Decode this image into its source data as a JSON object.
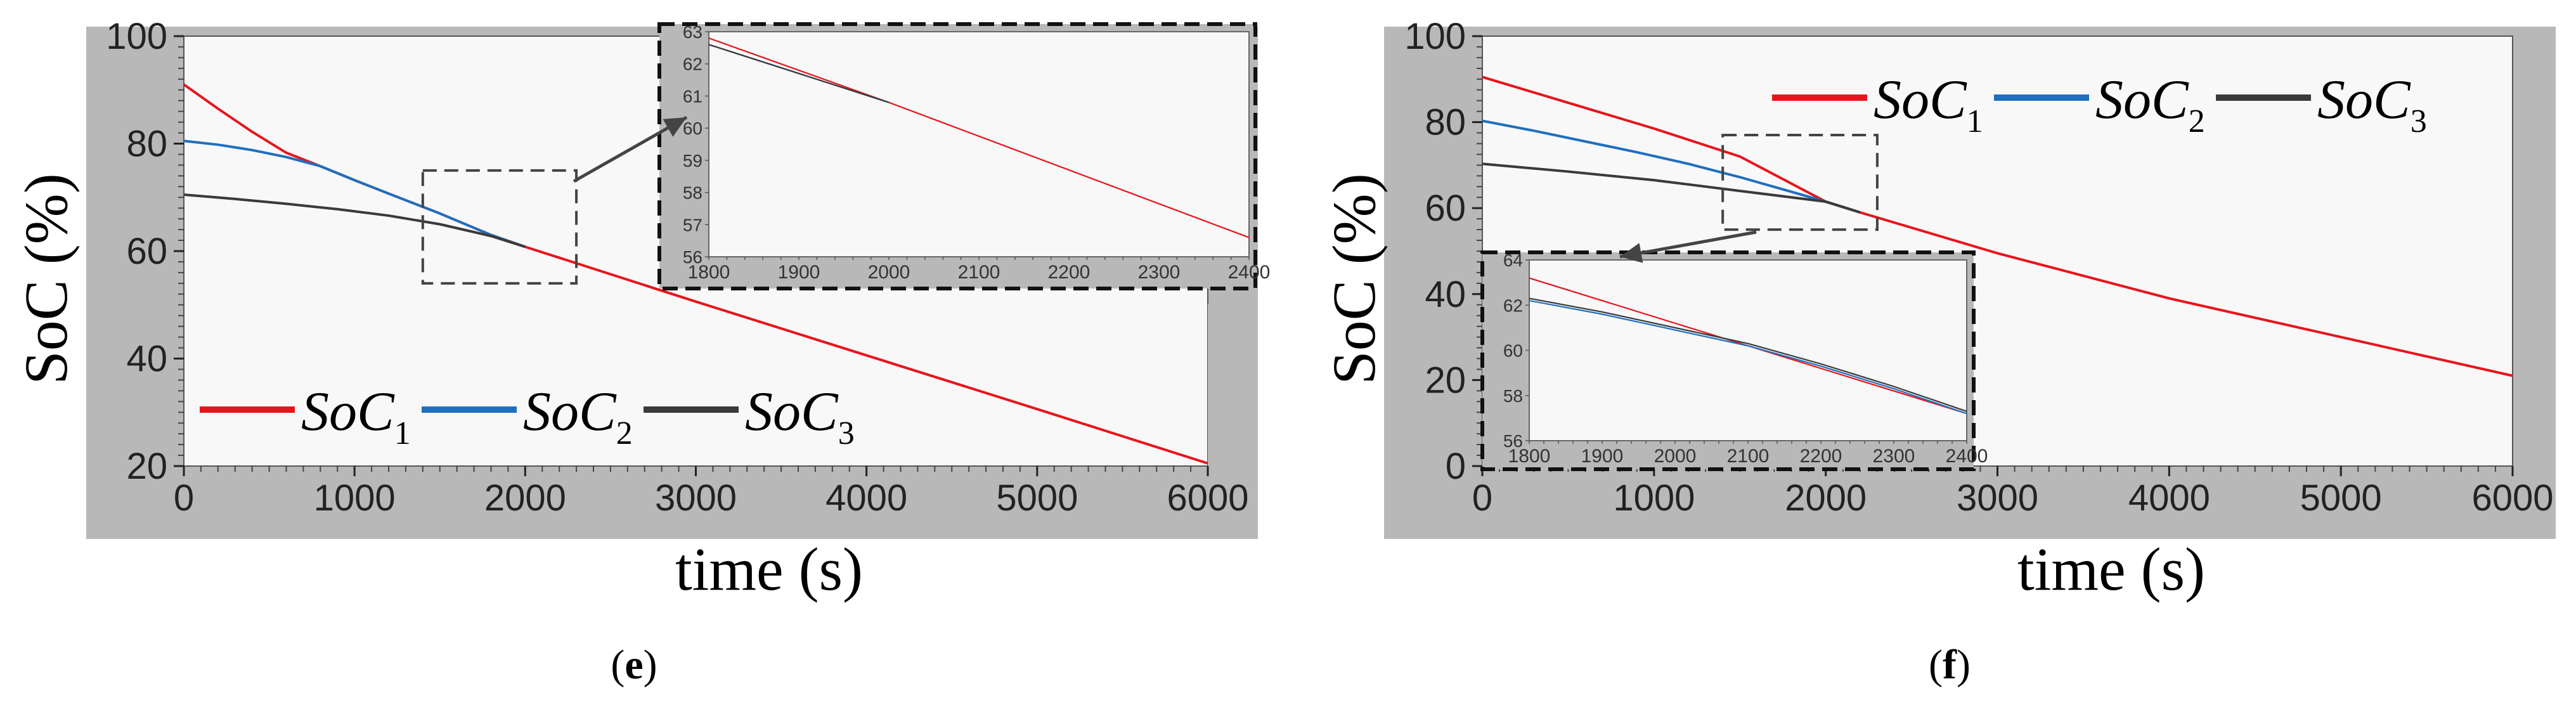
{
  "colors": {
    "soc1": "#e8141c",
    "soc2": "#1f6fbf",
    "soc3": "#3a3a3a",
    "frame": "#b8b8b8",
    "plot_bg": "#f8f8f8"
  },
  "chart_data": [
    {
      "type": "line",
      "panel_label": "e",
      "xlabel": "time (s)",
      "ylabel": "SoC (%)",
      "xlim": [
        0,
        6000
      ],
      "ylim": [
        20,
        100
      ],
      "xticks": [
        "0",
        "1000",
        "2000",
        "3000",
        "4000",
        "5000",
        "6000"
      ],
      "yticks": [
        "20",
        "40",
        "60",
        "80",
        "100"
      ],
      "legend_position": "bottom-left",
      "grid": false,
      "series": [
        {
          "name": "SoC1",
          "name_base": "SoC",
          "name_sub": "1",
          "color": "#e8141c",
          "x": [
            0,
            200,
            400,
            600,
            800,
            1000,
            1200,
            1500,
            1800,
            2000,
            3000,
            4000,
            5000,
            6000
          ],
          "y": [
            91,
            86.5,
            82.2,
            78.3,
            75.8,
            73.2,
            70.7,
            67,
            63,
            60.8,
            50.6,
            40.6,
            30.6,
            20.5
          ]
        },
        {
          "name": "SoC2",
          "name_base": "SoC",
          "name_sub": "2",
          "color": "#1f6fbf",
          "x": [
            0,
            200,
            400,
            600,
            800,
            1000,
            1200,
            1500,
            1800,
            2000
          ],
          "y": [
            80.5,
            79.8,
            78.8,
            77.5,
            75.8,
            73.2,
            70.7,
            67,
            63,
            60.8
          ]
        },
        {
          "name": "SoC3",
          "name_base": "SoC",
          "name_sub": "3",
          "color": "#3a3a3a",
          "x": [
            0,
            300,
            600,
            900,
            1200,
            1500,
            1800,
            2000
          ],
          "y": [
            70.5,
            69.7,
            68.8,
            67.8,
            66.6,
            65,
            62.8,
            60.8
          ]
        }
      ],
      "zoom_box": {
        "x": [
          1400,
          2300
        ],
        "y": [
          54,
          75
        ]
      },
      "inset": {
        "xlim": [
          1800,
          2400
        ],
        "ylim": [
          56,
          63
        ],
        "xticks": [
          "1800",
          "1900",
          "2000",
          "2100",
          "2200",
          "2300",
          "2400"
        ],
        "yticks": [
          "56",
          "57",
          "58",
          "59",
          "60",
          "61",
          "62",
          "63"
        ],
        "series": [
          {
            "name": "SoC1",
            "color": "#e8141c",
            "x": [
              1800,
              2000,
              2400
            ],
            "y": [
              62.8,
              60.8,
              56.6
            ]
          },
          {
            "name": "SoC2",
            "color": "#1f6fbf",
            "x": [
              1800,
              2000
            ],
            "y": [
              62.6,
              60.8
            ]
          },
          {
            "name": "SoC3",
            "color": "#3a3a3a",
            "x": [
              1800,
              2000
            ],
            "y": [
              62.6,
              60.8
            ]
          }
        ]
      }
    },
    {
      "type": "line",
      "panel_label": "f",
      "xlabel": "time (s)",
      "ylabel": "SoC (%)",
      "xlim": [
        0,
        6000
      ],
      "ylim": [
        0,
        100
      ],
      "xticks": [
        "0",
        "1000",
        "2000",
        "3000",
        "4000",
        "5000",
        "6000"
      ],
      "yticks": [
        "0",
        "20",
        "40",
        "60",
        "80",
        "100"
      ],
      "legend_position": "top-right",
      "grid": false,
      "series": [
        {
          "name": "SoC1",
          "name_base": "SoC",
          "name_sub": "1",
          "color": "#e8141c",
          "x": [
            0,
            1000,
            1500,
            2000,
            2200,
            3000,
            4000,
            5000,
            6000
          ],
          "y": [
            90.5,
            78.5,
            72,
            61.5,
            59,
            49.5,
            39,
            30,
            21
          ]
        },
        {
          "name": "SoC2",
          "name_base": "SoC",
          "name_sub": "2",
          "color": "#1f6fbf",
          "x": [
            0,
            300,
            600,
            900,
            1200,
            1500,
            1800,
            2000,
            2200
          ],
          "y": [
            80.3,
            78,
            75.5,
            73,
            70.3,
            67.2,
            63.8,
            61.5,
            59
          ]
        },
        {
          "name": "SoC3",
          "name_base": "SoC",
          "name_sub": "3",
          "color": "#3a3a3a",
          "x": [
            0,
            500,
            1000,
            1500,
            1800,
            2000,
            2200
          ],
          "y": [
            70.3,
            68.5,
            66.5,
            64,
            62.5,
            61.5,
            59
          ]
        }
      ],
      "zoom_box": {
        "x": [
          1400,
          2300
        ],
        "y": [
          55,
          77
        ]
      },
      "inset": {
        "xlim": [
          1800,
          2400
        ],
        "ylim": [
          56,
          64
        ],
        "xticks": [
          "1800",
          "1900",
          "2000",
          "2100",
          "2200",
          "2300",
          "2400"
        ],
        "yticks": [
          "56",
          "58",
          "60",
          "62",
          "64"
        ],
        "series": [
          {
            "name": "SoC1",
            "color": "#e8141c",
            "x": [
              1800,
              2000,
              2200,
              2400
            ],
            "y": [
              63.2,
              61.2,
              59.2,
              57.2
            ]
          },
          {
            "name": "SoC2",
            "color": "#1f6fbf",
            "x": [
              1800,
              1900,
              2000,
              2100,
              2200,
              2300,
              2400
            ],
            "y": [
              62.2,
              61.6,
              60.9,
              60.2,
              59.3,
              58.3,
              57.2
            ]
          },
          {
            "name": "SoC3",
            "color": "#3a3a3a",
            "x": [
              1800,
              1900,
              2000,
              2100,
              2200,
              2300,
              2400
            ],
            "y": [
              62.3,
              61.7,
              61.0,
              60.3,
              59.4,
              58.4,
              57.3
            ]
          }
        ]
      }
    }
  ]
}
